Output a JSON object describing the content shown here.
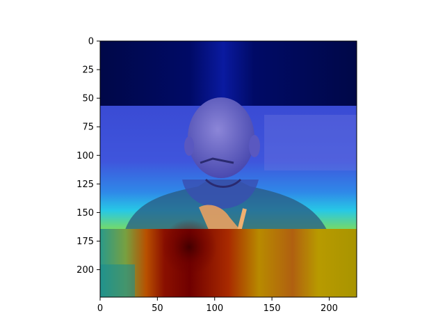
{
  "chart_data": {
    "type": "heatmap",
    "title": "",
    "xlabel": "",
    "ylabel": "",
    "xlim": [
      0,
      224
    ],
    "ylim": [
      224,
      0
    ],
    "x_ticks": [
      0,
      50,
      100,
      150,
      200
    ],
    "y_ticks": [
      0,
      25,
      50,
      75,
      100,
      125,
      150,
      175,
      200
    ],
    "x_tick_labels": [
      "0",
      "50",
      "100",
      "150",
      "200"
    ],
    "y_tick_labels": [
      "0",
      "25",
      "50",
      "75",
      "100",
      "125",
      "150",
      "175",
      "200"
    ],
    "colormap": "jet",
    "overlay": "attention heatmap over photo of a bald man with hand at chin",
    "bands": [
      {
        "y_range": [
          0,
          57
        ],
        "level": "low",
        "color": "#000a55"
      },
      {
        "y_range": [
          57,
          165
        ],
        "level": "low-medium",
        "color": "#3b4ad0"
      },
      {
        "y_range": [
          165,
          224
        ],
        "level": "high",
        "color": "#a88a00"
      }
    ],
    "hotspot": {
      "x": 78,
      "y": 180,
      "color": "#7a0000"
    }
  },
  "colors": {
    "deep_navy": "#000a55",
    "mid_blue": "#3b4ad0",
    "cyan": "#22d6e0",
    "dark_red": "#7a0000",
    "olive": "#a88a00",
    "teal": "#2a9a8a"
  }
}
